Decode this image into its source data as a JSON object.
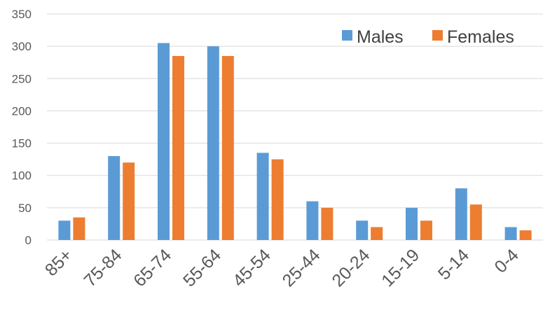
{
  "chart_data": {
    "type": "bar",
    "title": "",
    "xlabel": "",
    "ylabel": "",
    "categories": [
      "85+",
      "75-84",
      "65-74",
      "55-64",
      "45-54",
      "25-44",
      "20-24",
      "15-19",
      "5-14",
      "0-4"
    ],
    "series": [
      {
        "name": "Males",
        "color": "#5b9bd5",
        "values": [
          30,
          130,
          305,
          300,
          135,
          60,
          30,
          50,
          80,
          20
        ]
      },
      {
        "name": "Females",
        "color": "#ed7d31",
        "values": [
          35,
          120,
          285,
          285,
          125,
          50,
          20,
          30,
          55,
          15
        ]
      }
    ],
    "ylim": [
      0,
      350
    ],
    "yticks": [
      "0",
      "50",
      "100",
      "150",
      "200",
      "250",
      "300",
      "350"
    ],
    "grid": true,
    "legend_position": "top-right"
  }
}
